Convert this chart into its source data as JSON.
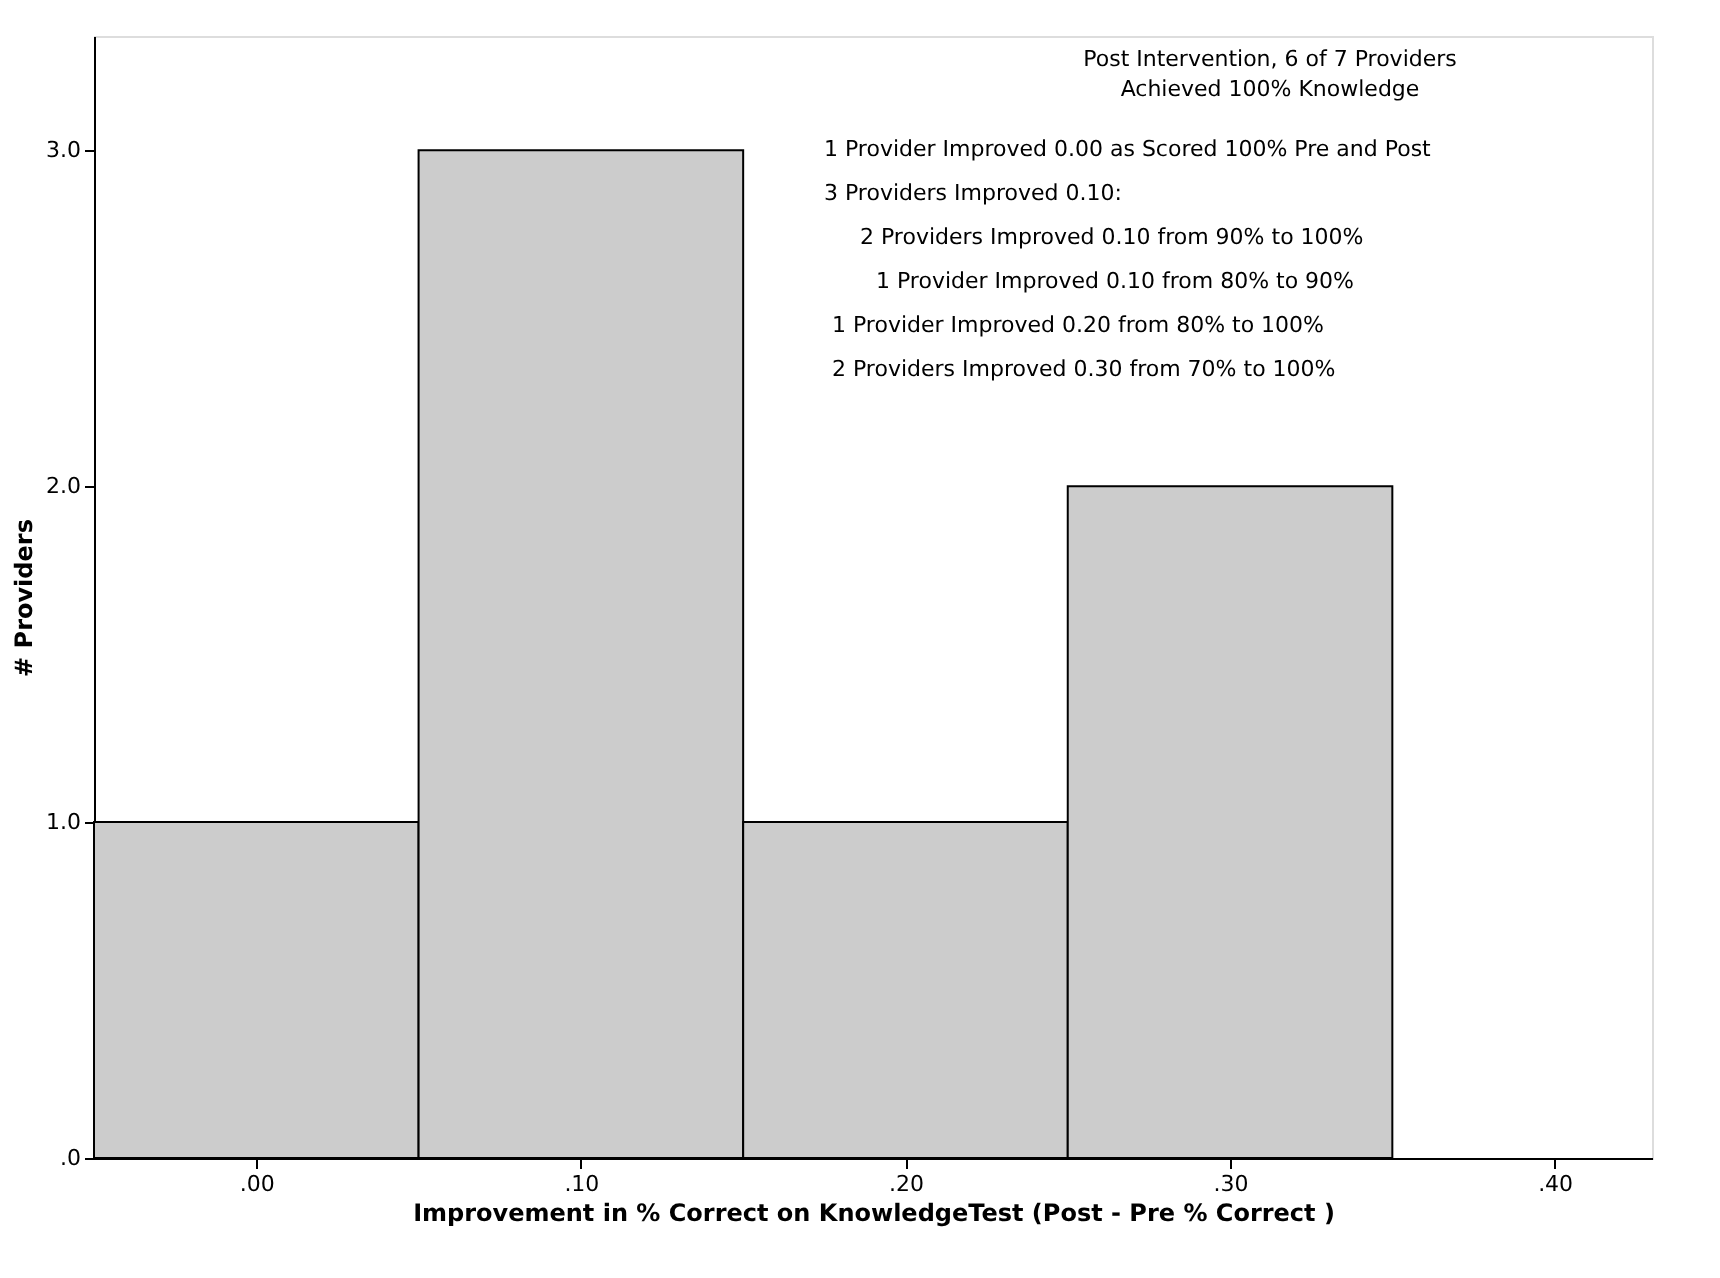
{
  "chart_data": {
    "type": "histogram",
    "bins": [
      -0.05,
      0.05,
      0.15,
      0.25,
      0.35
    ],
    "values": [
      1,
      3,
      1,
      2
    ],
    "color": "#cccccc",
    "xlim": [
      -0.05,
      0.43
    ],
    "xticks": [
      {
        "value": 0,
        "label": ".00"
      },
      {
        "value": 0.1,
        "label": ".10"
      },
      {
        "value": 0.2,
        "label": ".20"
      },
      {
        "value": 0.3,
        "label": ".30"
      },
      {
        "value": 0.4,
        "label": ".40"
      }
    ],
    "ylim": [
      0,
      3.34
    ],
    "yticks": [
      {
        "value": 0,
        "label": ".0"
      },
      {
        "value": 1,
        "label": "1.0"
      },
      {
        "value": 2,
        "label": "2.0"
      },
      {
        "value": 3,
        "label": "3.0"
      }
    ],
    "xlabel": "Improvement in % Correct on KnowledgeTest (Post - Pre % Correct )",
    "ylabel": "# Providers",
    "grid": false,
    "annotations": [
      "Post Intervention, 6 of 7 Providers",
      "Achieved 100% Knowledge",
      "1 Provider Improved 0.00 as Scored 100% Pre and Post",
      "3 Providers Improved 0.10:",
      "2 Providers Improved 0.10 from 90% to 100%",
      "1 Provider Improved 0.10 from 80% to 90%",
      "1 Provider Improved 0.20 from 80% to 100%",
      "2 Providers Improved 0.30 from 70% to 100%"
    ]
  }
}
